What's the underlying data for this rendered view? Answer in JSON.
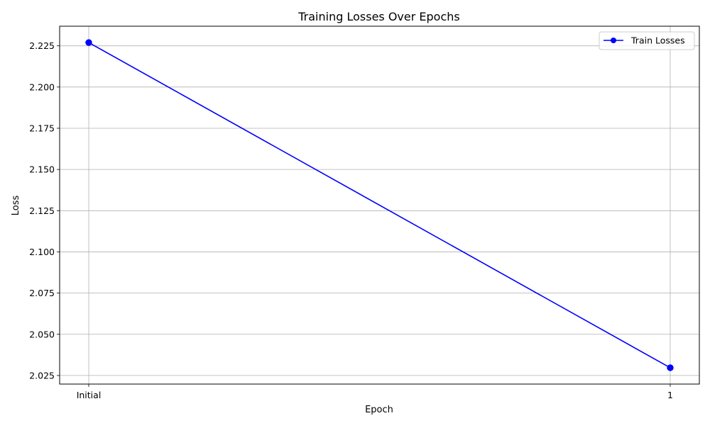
{
  "chart_data": {
    "type": "line",
    "title": "Training Losses Over Epochs",
    "xlabel": "Epoch",
    "ylabel": "Loss",
    "categories": [
      "Initial",
      "1"
    ],
    "series": [
      {
        "name": "Train Losses",
        "values": [
          2.227,
          2.0297
        ],
        "color": "#0000ff",
        "marker": "circle"
      }
    ],
    "yticks": [
      "2.025",
      "2.050",
      "2.075",
      "2.100",
      "2.125",
      "2.150",
      "2.175",
      "2.200",
      "2.225"
    ],
    "ylim": [
      2.0198,
      2.2369
    ],
    "grid": true,
    "legend_position": "top-right"
  }
}
